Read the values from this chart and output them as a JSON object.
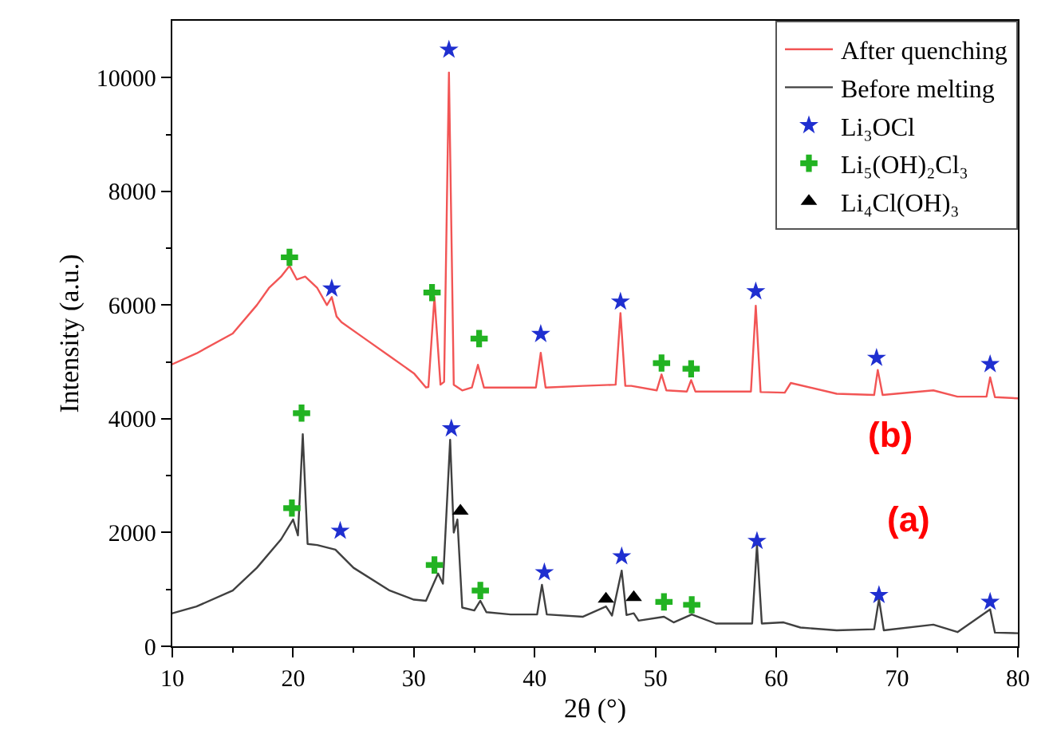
{
  "chart_data": {
    "type": "line",
    "xlabel": "2θ (°)",
    "ylabel": "Intensity (a.u.)",
    "xlim": [
      10,
      80
    ],
    "ylim": [
      0,
      11000
    ],
    "xticks": [
      10,
      {
        "value": 15,
        "label": null
      },
      20,
      {
        "value": 25,
        "label": null
      },
      30,
      {
        "value": 35,
        "label": null
      },
      40,
      {
        "value": 45,
        "label": null
      },
      50,
      {
        "value": 55,
        "label": null
      },
      60,
      {
        "value": 65,
        "label": null
      },
      70,
      {
        "value": 75,
        "label": null
      },
      80
    ],
    "yticks": [
      0,
      {
        "value": 1000,
        "label": null
      },
      2000,
      {
        "value": 3000,
        "label": null
      },
      4000,
      {
        "value": 5000,
        "label": null
      },
      6000,
      {
        "value": 7000,
        "label": null
      },
      8000,
      {
        "value": 9000,
        "label": null
      },
      10000
    ],
    "legend": "top right",
    "annotations": [
      "(b)",
      "(a)"
    ],
    "series": [
      {
        "name": "After quenching",
        "color": "#f25555",
        "marker": "none",
        "x": [
          10,
          12,
          15,
          17,
          18,
          19,
          19.7,
          20.3,
          21,
          22,
          22.8,
          23.2,
          23.6,
          24,
          26,
          28,
          30,
          31,
          31.2,
          31.7,
          32.2,
          32.5,
          32.9,
          33.3,
          34,
          34.8,
          35.3,
          35.8,
          38,
          40.1,
          40.5,
          40.9,
          44,
          46.7,
          47.1,
          47.5,
          48,
          50.1,
          50.5,
          50.9,
          52.6,
          52.95,
          53.3,
          55,
          57.9,
          58.3,
          58.7,
          60.7,
          61.2,
          65,
          68.1,
          68.4,
          68.8,
          73,
          75,
          77.4,
          77.7,
          78.1,
          80
        ],
        "values": [
          4960,
          5150,
          5500,
          6000,
          6300,
          6500,
          6690,
          6450,
          6500,
          6300,
          6000,
          6140,
          5800,
          5700,
          5400,
          5100,
          4800,
          4550,
          4560,
          6140,
          4600,
          4650,
          10090,
          4600,
          4500,
          4550,
          4950,
          4550,
          4550,
          4550,
          5160,
          4550,
          4580,
          4600,
          5860,
          4580,
          4580,
          4500,
          4780,
          4500,
          4480,
          4680,
          4480,
          4480,
          4480,
          5990,
          4470,
          4460,
          4630,
          4440,
          4420,
          4860,
          4420,
          4500,
          4390,
          4390,
          4730,
          4380,
          4360
        ]
      },
      {
        "name": "Before melting",
        "color": "#404040",
        "marker": "none",
        "x": [
          10,
          12,
          15,
          17,
          19,
          20,
          20.4,
          20.8,
          21.2,
          22,
          23.5,
          25,
          28,
          30,
          31,
          32,
          32.4,
          33,
          33.3,
          33.6,
          34,
          35,
          35.5,
          36,
          38,
          40.2,
          40.6,
          41,
          44,
          45.9,
          46.4,
          47.2,
          47.6,
          48.2,
          48.6,
          50.7,
          51.5,
          53,
          55,
          58,
          58.4,
          58.8,
          60.6,
          62,
          65,
          68.1,
          68.5,
          68.9,
          73,
          75,
          77.7,
          78.1,
          80
        ],
        "values": [
          580,
          700,
          980,
          1380,
          1880,
          2230,
          1950,
          3730,
          1800,
          1780,
          1700,
          1380,
          980,
          820,
          800,
          1280,
          1100,
          3630,
          2000,
          2230,
          680,
          630,
          800,
          600,
          560,
          560,
          1080,
          560,
          520,
          700,
          540,
          1330,
          550,
          580,
          450,
          520,
          420,
          560,
          400,
          400,
          1780,
          400,
          420,
          330,
          280,
          300,
          830,
          280,
          380,
          250,
          650,
          240,
          230
        ]
      },
      {
        "name": "Li₃OCl",
        "type": "scatter",
        "color": "#1f2fd0",
        "marker": "star",
        "x": [
          23.2,
          32.9,
          40.5,
          47.1,
          58.3,
          68.3,
          77.7,
          23.9,
          33.1,
          40.8,
          47.2,
          58.4,
          68.5,
          77.7
        ],
        "values": [
          6290,
          10490,
          5490,
          6060,
          6240,
          5070,
          4960,
          2030,
          3830,
          1300,
          1580,
          1850,
          900,
          780
        ]
      },
      {
        "name": "Li₅(OH)₂Cl₃",
        "type": "scatter",
        "color": "#22b322",
        "marker": "cross",
        "x": [
          19.7,
          31.5,
          35.4,
          50.5,
          52.95,
          19.9,
          20.7,
          31.7,
          35.5,
          50.7,
          53.0
        ],
        "values": [
          6840,
          6220,
          5410,
          4980,
          4880,
          2430,
          4100,
          1430,
          980,
          780,
          730
        ]
      },
      {
        "name": "Li₄Cl(OH)₃",
        "type": "scatter",
        "color": "#000000",
        "marker": "triangle",
        "x": [
          33.85,
          45.9,
          48.2
        ],
        "values": [
          2380,
          830,
          860
        ]
      }
    ]
  }
}
